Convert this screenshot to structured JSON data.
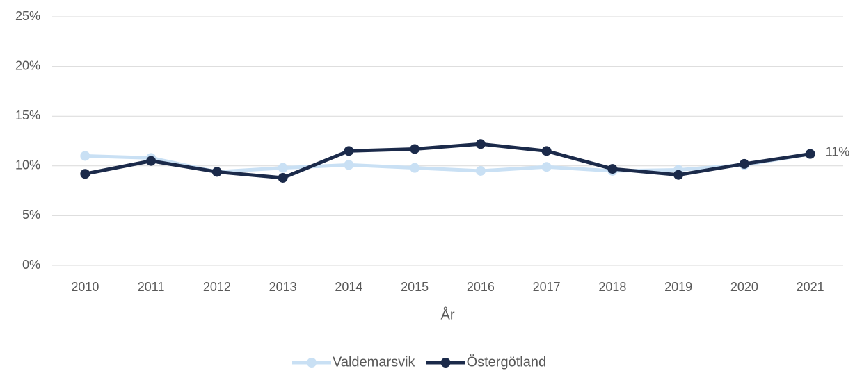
{
  "chart_data": {
    "type": "line",
    "x_label": "År",
    "categories": [
      "2010",
      "2011",
      "2012",
      "2013",
      "2014",
      "2015",
      "2016",
      "2017",
      "2018",
      "2019",
      "2020",
      "2021"
    ],
    "series": [
      {
        "name": "Valdemarsvik",
        "color": "#c9e0f4",
        "values": [
          11.0,
          10.8,
          9.4,
          9.8,
          10.1,
          9.8,
          9.5,
          9.9,
          9.5,
          9.6,
          10.1,
          11.2
        ]
      },
      {
        "name": "Östergötland",
        "color": "#1b2a4a",
        "values": [
          9.2,
          10.5,
          9.4,
          8.8,
          11.5,
          11.7,
          12.2,
          11.5,
          9.7,
          9.1,
          10.2,
          11.2
        ],
        "value_labels": [
          null,
          null,
          null,
          null,
          null,
          null,
          null,
          null,
          null,
          null,
          null,
          "11%"
        ]
      }
    ],
    "ylim": [
      0,
      25
    ],
    "yticks": [
      {
        "value": 0,
        "label": "0%"
      },
      {
        "value": 5,
        "label": "5%"
      },
      {
        "value": 10,
        "label": "10%"
      },
      {
        "value": 15,
        "label": "15%"
      },
      {
        "value": 20,
        "label": "20%"
      },
      {
        "value": 25,
        "label": "25%"
      }
    ],
    "grid": true,
    "legend": "bottom"
  }
}
